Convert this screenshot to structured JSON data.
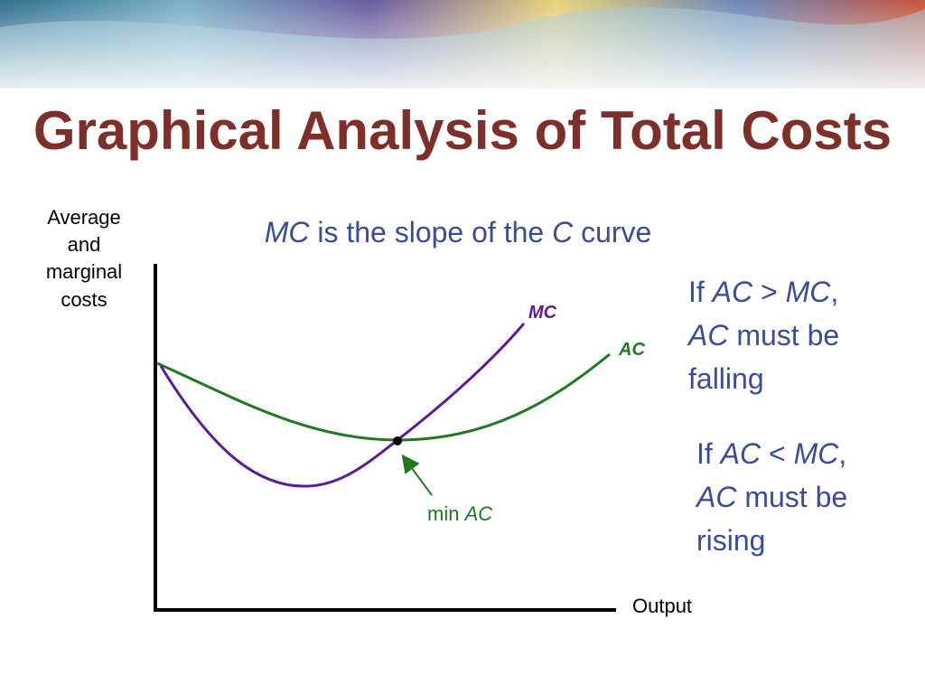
{
  "title": "Graphical Analysis of Total Costs",
  "subtitle": {
    "term1": "MC",
    "middle": "is the slope of the",
    "term2": "C",
    "end": "curve"
  },
  "y_axis_label": [
    "Average",
    "and",
    "marginal",
    "costs"
  ],
  "x_axis_label": "Output",
  "curves": [
    {
      "label": "MC",
      "color": "#5b1a99"
    },
    {
      "label": "AC",
      "color": "#1f7a1f"
    }
  ],
  "annotation": {
    "prefix": "min",
    "term": "AC"
  },
  "notes": [
    {
      "line1": [
        "If",
        "AC",
        ">",
        "MC",
        ","
      ],
      "line2": [
        "AC",
        "must be"
      ],
      "line3": "falling"
    },
    {
      "line1": [
        "If",
        "AC",
        "<",
        "MC",
        ","
      ],
      "line2": [
        "AC",
        "must be"
      ],
      "line3": "rising"
    }
  ]
}
